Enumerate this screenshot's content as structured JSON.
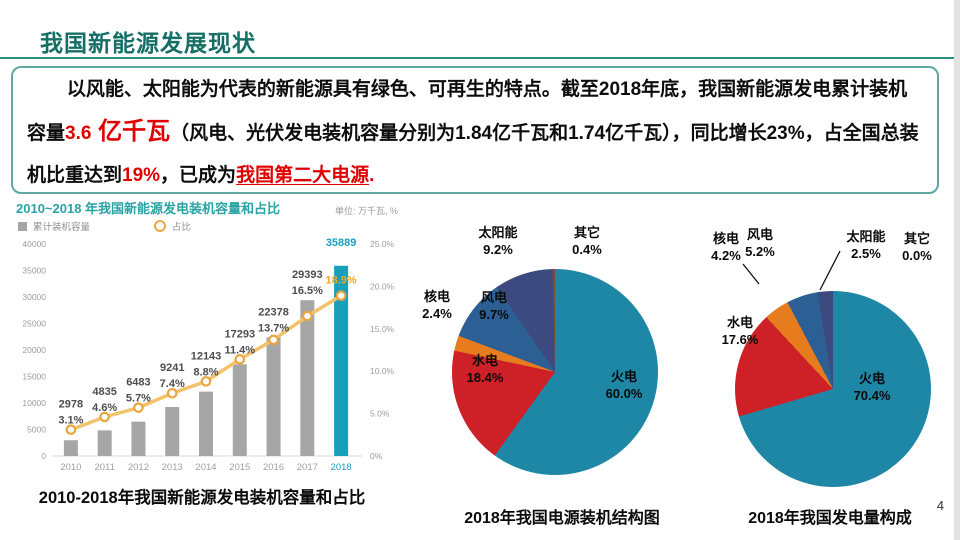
{
  "slide": {
    "title": "我国新能源发展现状",
    "page_number": "4"
  },
  "intro": {
    "seg1": "以风能、太阳能为代表的新能源具有绿色、可再生的特点。截至2018年底，我国新能源发电累计装机容量",
    "value": "3.6",
    "unit": " 亿千瓦",
    "seg2": "（风电、光伏发电装机容量分别为1.84亿千瓦和1.74亿千瓦），同比增长23%，占全国总装机比重达到",
    "pct": "19%",
    "seg3": "，已成为",
    "highlight": "我国第二大电源",
    "period": "."
  },
  "chart_data": [
    {
      "type": "bar",
      "title": "2010~2018 年我国新能源发电装机容量和占比",
      "unit_label": "单位: 万千瓦, %",
      "caption": "2010-2018年我国新能源发电装机容量和占比",
      "categories": [
        "2010",
        "2011",
        "2012",
        "2013",
        "2014",
        "2015",
        "2016",
        "2017",
        "2018"
      ],
      "series": [
        {
          "name": "累计装机容量",
          "type": "bar",
          "values": [
            2978,
            4835,
            6483,
            9241,
            12143,
            17293,
            22378,
            29393,
            35889
          ]
        },
        {
          "name": "占比",
          "type": "line",
          "values": [
            3.1,
            4.6,
            5.7,
            7.4,
            8.8,
            11.4,
            13.7,
            16.5,
            18.9
          ]
        }
      ],
      "left_axis": {
        "min": 0,
        "max": 40000,
        "ticks": [
          0,
          5000,
          10000,
          15000,
          20000,
          25000,
          30000,
          35000,
          40000
        ]
      },
      "right_axis": {
        "min": 0,
        "max": 25,
        "tick_labels": [
          "0%",
          "5.0%",
          "10.0%",
          "15.0%",
          "20.0%",
          "25.0%"
        ]
      },
      "colors": {
        "bar": "#a6a6a6",
        "bar_last": "#189fba",
        "line": "#f3c36b",
        "marker": "#e9a63f",
        "value_label": "#4d4d4d",
        "last_value": "#18a0bd",
        "last_pct": "#f5a623",
        "axis_text": "#9c9c9c",
        "last_year": "#189fba"
      }
    },
    {
      "type": "pie",
      "caption": "2018年我国电源装机结构图",
      "slices": [
        {
          "label": "火电",
          "pct": 60.0,
          "color": "#1e87a6"
        },
        {
          "label": "水电",
          "pct": 18.4,
          "color": "#cd2027"
        },
        {
          "label": "核电",
          "pct": 2.4,
          "color": "#e77c1e"
        },
        {
          "label": "风电",
          "pct": 9.7,
          "color": "#2c6094"
        },
        {
          "label": "太阳能",
          "pct": 9.2,
          "color": "#3d4a80"
        },
        {
          "label": "其它",
          "pct": 0.4,
          "color": "#7a4a3a"
        }
      ]
    },
    {
      "type": "pie",
      "caption": "2018年我国发电量构成",
      "slices": [
        {
          "label": "火电",
          "pct": 70.4,
          "color": "#1e87a6"
        },
        {
          "label": "水电",
          "pct": 17.6,
          "color": "#cd2027"
        },
        {
          "label": "核电",
          "pct": 4.2,
          "color": "#e77c1e"
        },
        {
          "label": "风电",
          "pct": 5.2,
          "color": "#2c6094"
        },
        {
          "label": "太阳能",
          "pct": 2.5,
          "color": "#3d4a80"
        },
        {
          "label": "其它",
          "pct": 0.0,
          "color": "#17375e"
        }
      ]
    }
  ]
}
